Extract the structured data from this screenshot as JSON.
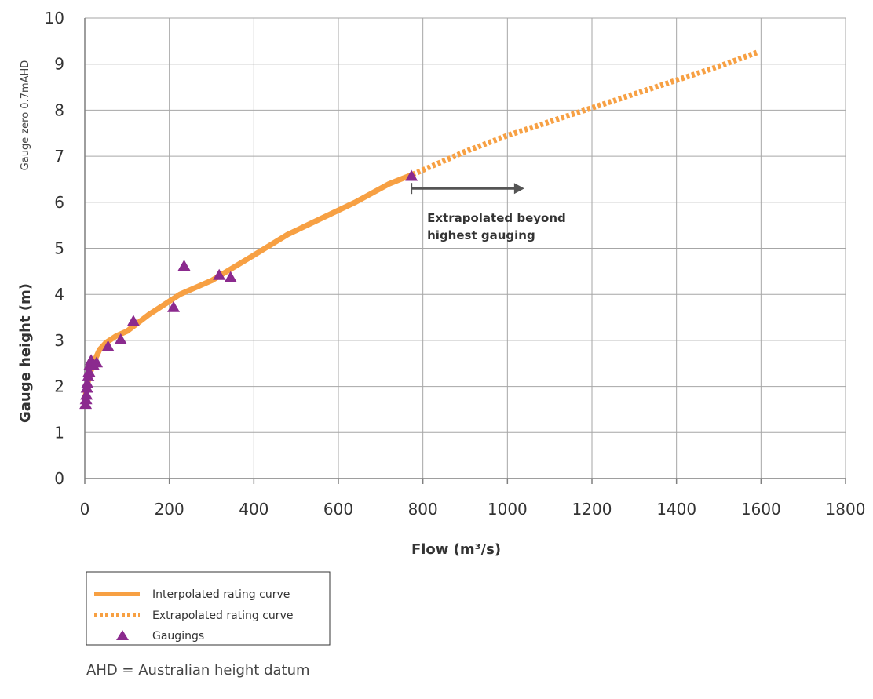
{
  "chart_data": {
    "type": "line",
    "xlabel": "Flow (m³/s)",
    "ylabel": "Gauge height (m)",
    "ylabel_secondary": "Gauge zero 0.7mAHD",
    "xlim": [
      0,
      1800
    ],
    "ylim": [
      0,
      10
    ],
    "x_ticks": [
      0,
      200,
      400,
      600,
      800,
      1000,
      1200,
      1400,
      1600,
      1800
    ],
    "y_ticks": [
      0,
      1,
      2,
      3,
      4,
      5,
      6,
      7,
      8,
      9,
      10
    ],
    "grid": true,
    "series": [
      {
        "name": "Interpolated rating curve",
        "style": "solid",
        "color": "#F7A043",
        "x": [
          0,
          3,
          10,
          20,
          35,
          50,
          75,
          100,
          150,
          225,
          300,
          400,
          480,
          560,
          640,
          720,
          775
        ],
        "y": [
          1.6,
          1.9,
          2.2,
          2.5,
          2.8,
          2.95,
          3.1,
          3.2,
          3.55,
          4.0,
          4.3,
          4.85,
          5.3,
          5.65,
          6.0,
          6.4,
          6.6
        ]
      },
      {
        "name": "Extrapolated rating curve",
        "style": "dotted",
        "color": "#F7A043",
        "x": [
          775,
          900,
          1000,
          1100,
          1200,
          1300,
          1400,
          1500,
          1590
        ],
        "y": [
          6.6,
          7.1,
          7.45,
          7.75,
          8.05,
          8.35,
          8.65,
          8.95,
          9.25
        ]
      },
      {
        "name": "Gaugings",
        "style": "markers",
        "color": "#8B2A8E",
        "x": [
          2,
          3,
          4,
          5,
          6,
          8,
          10,
          12,
          15,
          20,
          28,
          55,
          85,
          115,
          210,
          235,
          318,
          345,
          773
        ],
        "y": [
          1.6,
          1.7,
          1.8,
          1.95,
          2.05,
          2.2,
          2.3,
          2.45,
          2.55,
          2.45,
          2.5,
          2.85,
          3.0,
          3.4,
          3.7,
          4.6,
          4.4,
          4.35,
          6.55
        ]
      }
    ],
    "annotations": [
      {
        "lines": [
          "Extrapolated beyond",
          "highest gauging"
        ],
        "arrow_from": [
          773,
          6.3
        ],
        "arrow_to": [
          1040,
          6.3
        ]
      }
    ],
    "legend": {
      "placement": "bottom-left",
      "entries": [
        "Interpolated rating curve",
        "Extrapolated rating curve",
        "Gaugings"
      ]
    },
    "footnote": "AHD = Australian height datum"
  },
  "colors": {
    "curve": "#F7A043",
    "gauging": "#8B2A8E",
    "arrow": "#555555",
    "grid": "#A6A6A6",
    "axis": "#7F7F7F"
  }
}
